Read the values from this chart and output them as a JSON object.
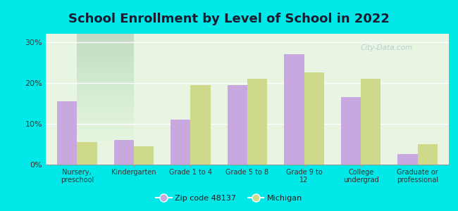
{
  "title": "School Enrollment by Level of School in 2022",
  "categories": [
    "Nursery,\npreschool",
    "Kindergarten",
    "Grade 1 to 4",
    "Grade 5 to 8",
    "Grade 9 to\n12",
    "College\nundergrad",
    "Graduate or\nprofessional"
  ],
  "zip_values": [
    15.5,
    6.0,
    11.0,
    19.5,
    27.0,
    16.5,
    2.5
  ],
  "michigan_values": [
    5.5,
    4.5,
    19.5,
    21.0,
    22.5,
    21.0,
    5.0
  ],
  "zip_color": "#c9a8e0",
  "michigan_color": "#cfd98a",
  "background_outer": "#00e8e8",
  "background_plot_top": "#e8f5e2",
  "background_plot_bottom": "#d0f0d8",
  "yticks": [
    0,
    10,
    20,
    30
  ],
  "ylim": [
    0,
    32
  ],
  "legend_zip": "Zip code 48137",
  "legend_michigan": "Michigan",
  "bar_width": 0.35,
  "title_fontsize": 13,
  "title_color": "#1a1a2e",
  "watermark": "City-Data.com"
}
